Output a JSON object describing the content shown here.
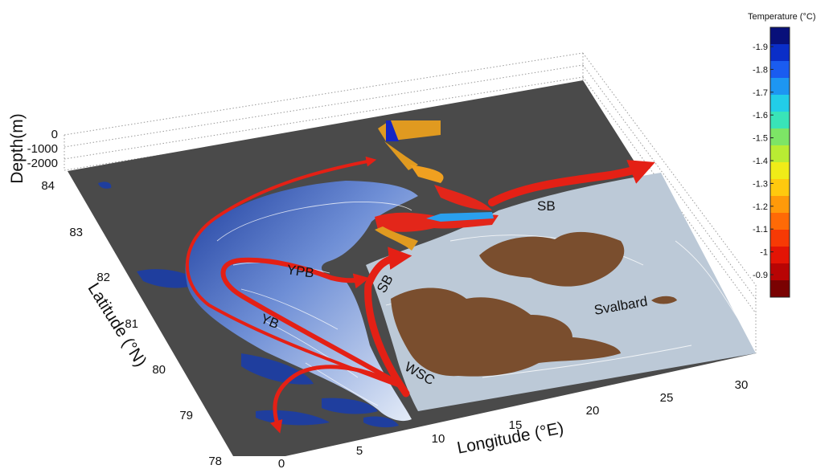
{
  "colorbar": {
    "title": "Temperature (°C)",
    "ticks": [
      "-1.9",
      "-1.8",
      "-1.7",
      "-1.6",
      "-1.5",
      "-1.4",
      "-1.3",
      "-1.2",
      "-1.1",
      "-1",
      "-0.9"
    ],
    "colors": [
      "#08107a",
      "#0a2ec8",
      "#1a5cf0",
      "#1d96f2",
      "#22cde8",
      "#39e4b8",
      "#7de566",
      "#b9ec33",
      "#f0ec18",
      "#ffc90e",
      "#ff9a0a",
      "#ff6a06",
      "#f73a05",
      "#e31405",
      "#b80404",
      "#7a0202"
    ]
  },
  "axes": {
    "depth_title": "Depth(m)",
    "depth_ticks": [
      "0",
      "-1000",
      "-2000"
    ],
    "latitude_title": "Latitude (°N)",
    "latitude_ticks": [
      "84",
      "83",
      "82",
      "81",
      "80",
      "79",
      "78"
    ],
    "longitude_title": "Longitude (°E)",
    "longitude_ticks": [
      "0",
      "5",
      "10",
      "15",
      "20",
      "25",
      "30"
    ]
  },
  "labels": {
    "ypb": "YPB",
    "yb": "YB",
    "sb_north": "SB",
    "sb_west": "SB",
    "wsc": "WSC",
    "svalbard": "Svalbard"
  },
  "colors": {
    "background_dark": "#4a4a4a",
    "shelf": "#bcc9d7",
    "land": "#7a4e2e",
    "current_arrow": "#e42015",
    "deep_basin": "#1a3c9a",
    "temperature_band": "#e09a20"
  }
}
